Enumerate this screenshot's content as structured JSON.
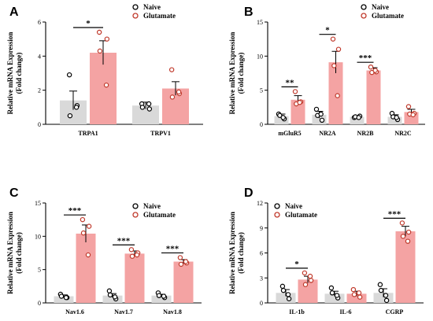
{
  "colors": {
    "naive_bar": "#d9d9d9",
    "glutamate_bar": "#f4a3a3",
    "naive_dot": "#000000",
    "glutamate_dot": "#c0392b",
    "axis": "#000000"
  },
  "chart_data": [
    {
      "type": "bar",
      "panel": "A",
      "ylabel": [
        "Relative mRNA Expression",
        "(Fold change)"
      ],
      "categories": [
        "TRPA1",
        "TRPV1"
      ],
      "ylim": [
        0,
        6
      ],
      "yticks": [
        0,
        2,
        4,
        6
      ],
      "legend": {
        "position": "top-right"
      },
      "series": [
        {
          "name": "Naive",
          "values": [
            1.4,
            1.1
          ],
          "errors": [
            0.55,
            0.2
          ],
          "points": [
            [
              2.9,
              1.1,
              0.5,
              1.0
            ],
            [
              1.2,
              0.9,
              1.0,
              1.2
            ]
          ]
        },
        {
          "name": "Glutamate",
          "values": [
            4.2,
            2.1
          ],
          "errors": [
            0.7,
            0.4
          ],
          "points": [
            [
              5.4,
              5.0,
              4.3,
              2.3
            ],
            [
              3.2,
              1.8,
              1.6,
              1.9
            ]
          ]
        }
      ],
      "significance": [
        {
          "category": 0,
          "label": "*"
        }
      ]
    },
    {
      "type": "bar",
      "panel": "B",
      "ylabel": [
        "Relative mRNA Expression",
        "(Fold change)"
      ],
      "categories": [
        "mGluR5",
        "NR2A",
        "NR2B",
        "NR2C"
      ],
      "ylim": [
        0,
        15
      ],
      "yticks": [
        0,
        5,
        10,
        15
      ],
      "legend": {
        "position": "top-right"
      },
      "series": [
        {
          "name": "Naive",
          "values": [
            1.2,
            1.4,
            1.1,
            1.1
          ],
          "errors": [
            0.3,
            0.5,
            0.15,
            0.3
          ],
          "points": [
            [
              1.5,
              0.8,
              1.3,
              1.0
            ],
            [
              2.2,
              0.6,
              1.3,
              1.5
            ],
            [
              1.0,
              1.2,
              1.1,
              1.0
            ],
            [
              1.6,
              0.7,
              1.1,
              1.0
            ]
          ]
        },
        {
          "name": "Glutamate",
          "values": [
            3.6,
            9.1,
            7.9,
            1.8
          ],
          "errors": [
            0.6,
            1.6,
            0.4,
            0.4
          ],
          "points": [
            [
              4.8,
              3.3,
              3.0,
              3.2
            ],
            [
              12.5,
              11.0,
              8.6,
              4.2
            ],
            [
              8.4,
              7.7,
              7.6,
              7.9
            ],
            [
              2.6,
              1.6,
              1.5,
              1.4
            ]
          ]
        }
      ],
      "significance": [
        {
          "category": 0,
          "label": "**"
        },
        {
          "category": 1,
          "label": "*"
        },
        {
          "category": 2,
          "label": "***"
        }
      ]
    },
    {
      "type": "bar",
      "panel": "C",
      "ylabel": [
        "Relative mRNA Expression",
        "(Fold change)"
      ],
      "categories": [
        "Nav1.6",
        "Nav1.7",
        "Nav1.8"
      ],
      "ylim": [
        0,
        15
      ],
      "yticks": [
        0,
        5,
        10,
        15
      ],
      "legend": {
        "position": "top-right"
      },
      "series": [
        {
          "name": "Naive",
          "values": [
            1.0,
            1.1,
            1.1
          ],
          "errors": [
            0.2,
            0.3,
            0.2
          ],
          "points": [
            [
              1.3,
              0.8,
              1.0,
              0.8
            ],
            [
              1.8,
              0.6,
              1.2,
              0.9
            ],
            [
              1.5,
              0.8,
              1.1,
              1.0
            ]
          ]
        },
        {
          "name": "Glutamate",
          "values": [
            10.4,
            7.4,
            6.2
          ],
          "errors": [
            1.3,
            0.4,
            0.3
          ],
          "points": [
            [
              12.5,
              11.5,
              10.5,
              7.2
            ],
            [
              8.0,
              7.5,
              7.0,
              7.2
            ],
            [
              6.8,
              6.0,
              5.8,
              6.2
            ]
          ]
        }
      ],
      "significance": [
        {
          "category": 0,
          "label": "***"
        },
        {
          "category": 1,
          "label": "***"
        },
        {
          "category": 2,
          "label": "***"
        }
      ]
    },
    {
      "type": "bar",
      "panel": "D",
      "ylabel": [
        "Relative mRNA Expression",
        "(Fold change)"
      ],
      "categories": [
        "IL-1b",
        "IL-6",
        "CGRP"
      ],
      "ylim": [
        0,
        12
      ],
      "yticks": [
        0,
        3,
        6,
        9,
        12
      ],
      "legend": {
        "position": "top-left"
      },
      "series": [
        {
          "name": "Naive",
          "values": [
            1.2,
            1.1,
            1.2
          ],
          "errors": [
            0.4,
            0.3,
            0.5
          ],
          "points": [
            [
              2.0,
              0.5,
              1.5,
              1.0
            ],
            [
              1.8,
              0.6,
              1.2,
              0.9
            ],
            [
              2.2,
              0.3,
              1.5,
              0.9
            ]
          ]
        },
        {
          "name": "Glutamate",
          "values": [
            2.8,
            1.1,
            8.6
          ],
          "errors": [
            0.4,
            0.3,
            0.6
          ],
          "points": [
            [
              3.6,
              2.7,
              2.2,
              3.2
            ],
            [
              1.6,
              0.7,
              1.0,
              1.2
            ],
            [
              9.6,
              8.5,
              8.0,
              7.4
            ]
          ]
        }
      ],
      "significance": [
        {
          "category": 0,
          "label": "*"
        },
        {
          "category": 2,
          "label": "***"
        }
      ]
    }
  ]
}
